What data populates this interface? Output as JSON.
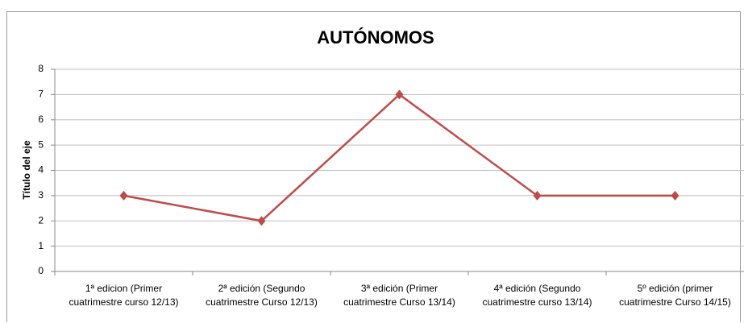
{
  "chart_data": {
    "type": "line",
    "title": "AUTÓNOMOS",
    "y_label": "Título del eje",
    "categories": [
      "1ª edicion (Primer\ncuatrimestre curso 12/13)",
      "2ª edición (Segundo\ncuatrimestre Curso 12/13)",
      "3ª edición (Primer\ncuatrimestre Curso 13/14)",
      "4ª edición (Segundo\ncuatrimestre curso 13/14)",
      "5º edición (primer\ncuatrimestre Curso 14/15)"
    ],
    "series": [
      {
        "name": "AUTÓNOMOS",
        "color": "#be4b48",
        "values": [
          3,
          2,
          7,
          3,
          3
        ]
      }
    ],
    "ylim": [
      0,
      8
    ],
    "yticks": [
      0,
      1,
      2,
      3,
      4,
      5,
      6,
      7,
      8
    ],
    "grid": true,
    "legend": false
  }
}
